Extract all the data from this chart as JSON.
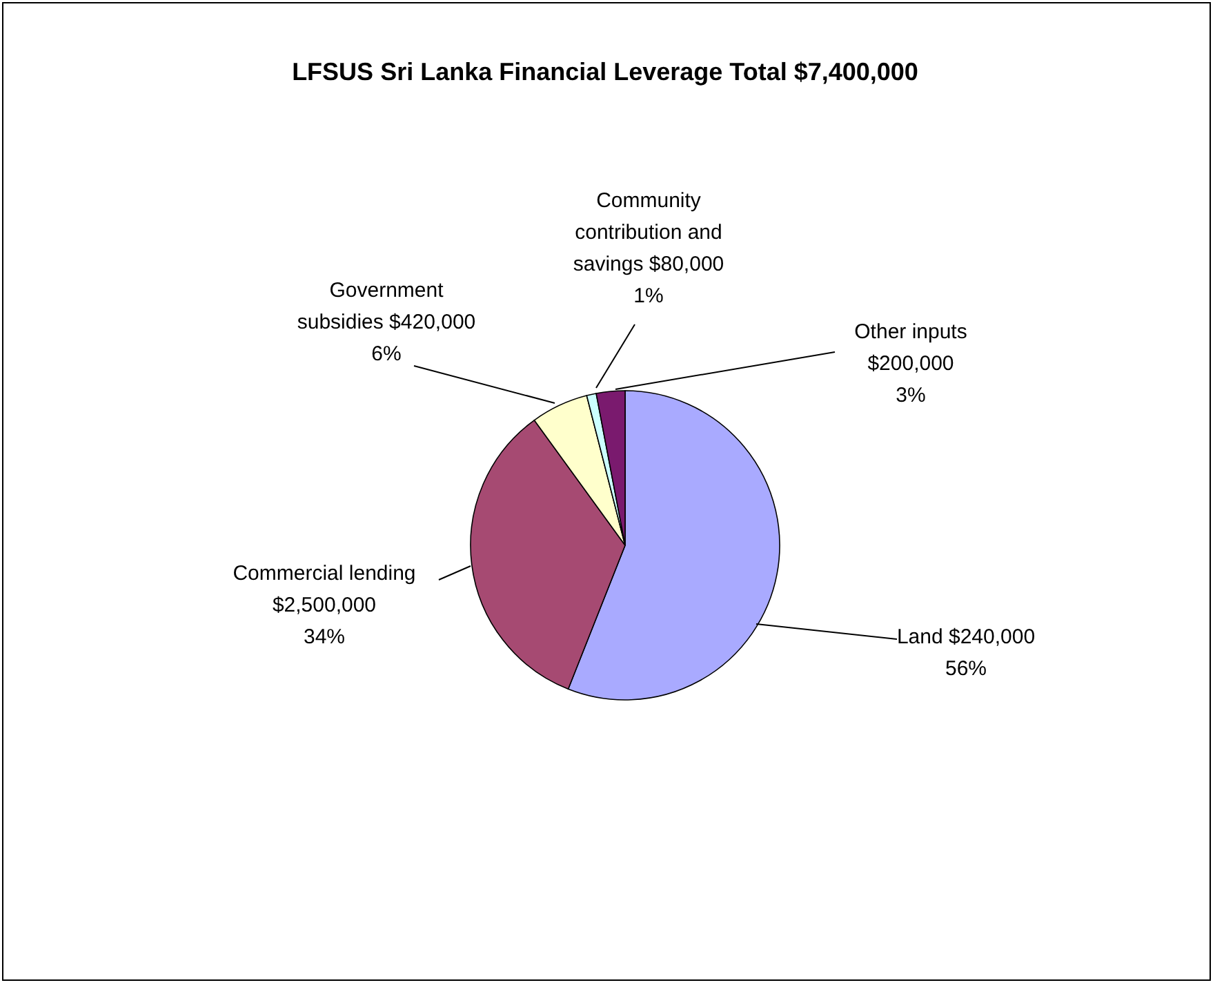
{
  "chart_data": {
    "type": "pie",
    "title": "LFSUS Sri Lanka Financial Leverage Total $7,400,000",
    "categories": [
      "Land $240,000",
      "Commercial lending\n$2,500,000",
      "Government\nsubsidies $420,000",
      "Community\ncontribution and\nsavings $80,000",
      "Other inputs\n$200,000"
    ],
    "values": [
      56,
      34,
      6,
      1,
      3
    ],
    "value_labels": [
      "56%",
      "34%",
      "6%",
      "1%",
      "3%"
    ],
    "colors": [
      "#a9aaff",
      "#a64a72",
      "#ffffcc",
      "#ccffff",
      "#7a1a6e"
    ]
  }
}
